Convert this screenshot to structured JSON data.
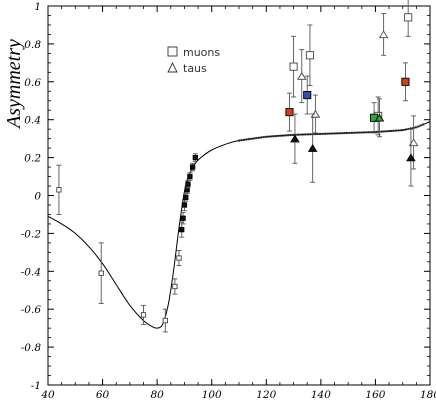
{
  "chart_data": {
    "type": "scatter",
    "title": "",
    "xlabel": "",
    "ylabel": "Asymmetry",
    "xlim": [
      40,
      180
    ],
    "ylim": [
      -1,
      1
    ],
    "grid": false,
    "legend_position": "top-center",
    "x_ticks": [
      40,
      60,
      80,
      100,
      120,
      140,
      160,
      180
    ],
    "x_tick_labels": [
      "40",
      "60",
      "80",
      "100",
      "120",
      "140",
      "160",
      "180"
    ],
    "y_ticks": [
      -1,
      -0.8,
      -0.6,
      -0.4,
      -0.2,
      0,
      0.2,
      0.4,
      0.6,
      0.8,
      1
    ],
    "y_tick_labels": [
      "-1",
      "-0.8",
      "-0.6",
      "-0.4",
      "-0.2",
      "0",
      "0.2",
      "0.4",
      "0.6",
      "0.8",
      "1"
    ],
    "colors": {
      "axis": "#000000",
      "error_bar": "#555555",
      "red": "#d43c1e",
      "blue": "#3a4ea8",
      "green": "#2aa83c"
    },
    "legend": [
      {
        "label": "muons",
        "marker": "square"
      },
      {
        "label": "taus",
        "marker": "triangle"
      }
    ],
    "theory_curve": {
      "x": [
        40,
        45,
        50,
        55,
        60,
        65,
        70,
        75,
        78,
        80,
        82,
        84,
        86,
        88,
        90,
        91.2,
        92,
        94,
        96,
        100,
        105,
        110,
        120,
        130,
        140,
        150,
        160,
        170,
        175,
        180
      ],
      "y": [
        -0.11,
        -0.15,
        -0.2,
        -0.27,
        -0.36,
        -0.47,
        -0.58,
        -0.66,
        -0.69,
        -0.7,
        -0.68,
        -0.58,
        -0.4,
        -0.17,
        0.02,
        0.09,
        0.12,
        0.17,
        0.2,
        0.24,
        0.27,
        0.29,
        0.31,
        0.32,
        0.325,
        0.33,
        0.335,
        0.345,
        0.36,
        0.39
      ]
    },
    "series": [
      {
        "name": "muons",
        "marker": "square",
        "points": [
          {
            "x": 44,
            "y": 0.03,
            "err": 0.13,
            "fill": "open"
          },
          {
            "x": 59.5,
            "y": -0.41,
            "err": 0.16,
            "fill": "open"
          },
          {
            "x": 75,
            "y": -0.63,
            "err": 0.05,
            "fill": "open"
          },
          {
            "x": 83,
            "y": -0.66,
            "err": 0.06,
            "fill": "open"
          },
          {
            "x": 86.5,
            "y": -0.48,
            "err": 0.04,
            "fill": "open"
          },
          {
            "x": 88,
            "y": -0.33,
            "err": 0.04,
            "fill": "open"
          },
          {
            "x": 89,
            "y": -0.18,
            "err": 0.04,
            "fill": "solid"
          },
          {
            "x": 89.5,
            "y": -0.12,
            "err": 0.03,
            "fill": "solid"
          },
          {
            "x": 90,
            "y": -0.05,
            "err": 0.03,
            "fill": "solid"
          },
          {
            "x": 90.5,
            "y": -0.01,
            "err": 0.02,
            "fill": "solid"
          },
          {
            "x": 91,
            "y": 0.03,
            "err": 0.02,
            "fill": "solid"
          },
          {
            "x": 91.3,
            "y": 0.06,
            "err": 0.02,
            "fill": "solid"
          },
          {
            "x": 92,
            "y": 0.1,
            "err": 0.02,
            "fill": "solid"
          },
          {
            "x": 93,
            "y": 0.15,
            "err": 0.02,
            "fill": "solid"
          },
          {
            "x": 94,
            "y": 0.2,
            "err": 0.02,
            "fill": "solid"
          },
          {
            "x": 130,
            "y": 0.68,
            "err": 0.16,
            "fill": "open"
          },
          {
            "x": 136,
            "y": 0.74,
            "err": 0.16,
            "fill": "open"
          },
          {
            "x": 161,
            "y": 0.42,
            "err": 0.1,
            "fill": "open"
          },
          {
            "x": 172,
            "y": 0.94,
            "err": 0.1,
            "fill": "open"
          },
          {
            "x": 128.5,
            "y": 0.44,
            "err": 0.1,
            "fill": "red"
          },
          {
            "x": 135,
            "y": 0.53,
            "err": 0.1,
            "fill": "blue"
          },
          {
            "x": 159.5,
            "y": 0.41,
            "err": 0.08,
            "fill": "green"
          },
          {
            "x": 171,
            "y": 0.6,
            "err": 0.1,
            "fill": "red"
          }
        ]
      },
      {
        "name": "taus",
        "marker": "triangle",
        "points": [
          {
            "x": 133,
            "y": 0.63,
            "err": 0.14,
            "fill": "open"
          },
          {
            "x": 138,
            "y": 0.43,
            "err": 0.1,
            "fill": "open"
          },
          {
            "x": 163,
            "y": 0.85,
            "err": 0.11,
            "fill": "open"
          },
          {
            "x": 174,
            "y": 0.28,
            "err": 0.14,
            "fill": "open"
          },
          {
            "x": 130.5,
            "y": 0.3,
            "err": 0.13,
            "fill": "solid"
          },
          {
            "x": 137,
            "y": 0.25,
            "err": 0.18,
            "fill": "solid"
          },
          {
            "x": 161.5,
            "y": 0.41,
            "err": 0.1,
            "fill": "green"
          },
          {
            "x": 173,
            "y": 0.2,
            "err": 0.15,
            "fill": "solid"
          }
        ]
      }
    ]
  }
}
